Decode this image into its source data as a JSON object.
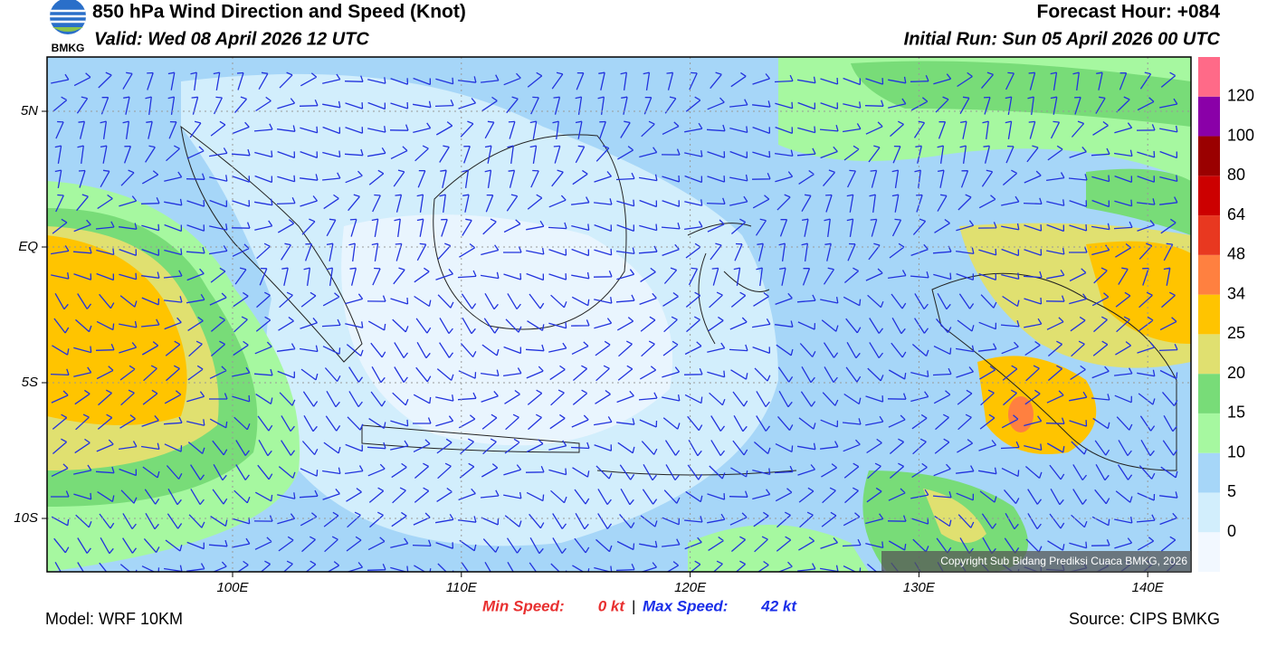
{
  "header": {
    "logo": "BMKG",
    "title": "850 hPa Wind Direction and Speed (Knot)",
    "valid": "Valid: Wed 08 April 2026 12 UTC",
    "forecast_hour": "Forecast Hour: +084",
    "initial_run": "Initial Run: Sun 05 April 2026 00 UTC"
  },
  "map": {
    "lat_ticks": [
      "5N",
      "EQ",
      "5S",
      "10S"
    ],
    "lon_ticks": [
      "100E",
      "110E",
      "120E",
      "130E",
      "140E"
    ],
    "copyright": "Copyright Sub Bidang Prediksi Cuaca BMKG, 2026"
  },
  "colorbar": {
    "levels": [
      0,
      5,
      10,
      15,
      20,
      25,
      34,
      48,
      64,
      80,
      100,
      120
    ],
    "colors": [
      "#f2f8ff",
      "#d2eefc",
      "#a6d6f8",
      "#a6f8a0",
      "#78dc78",
      "#e0e070",
      "#ffc400",
      "#ff8040",
      "#e83820",
      "#cc0000",
      "#9a0000",
      "#8a00a8",
      "#ff6a88"
    ]
  },
  "footer": {
    "min_label": "Min Speed:",
    "min_value": "0 kt",
    "separator": "|",
    "max_label": "Max Speed:",
    "max_value": "42 kt",
    "model": "Model: WRF 10KM",
    "source": "Source: CIPS BMKG"
  }
}
